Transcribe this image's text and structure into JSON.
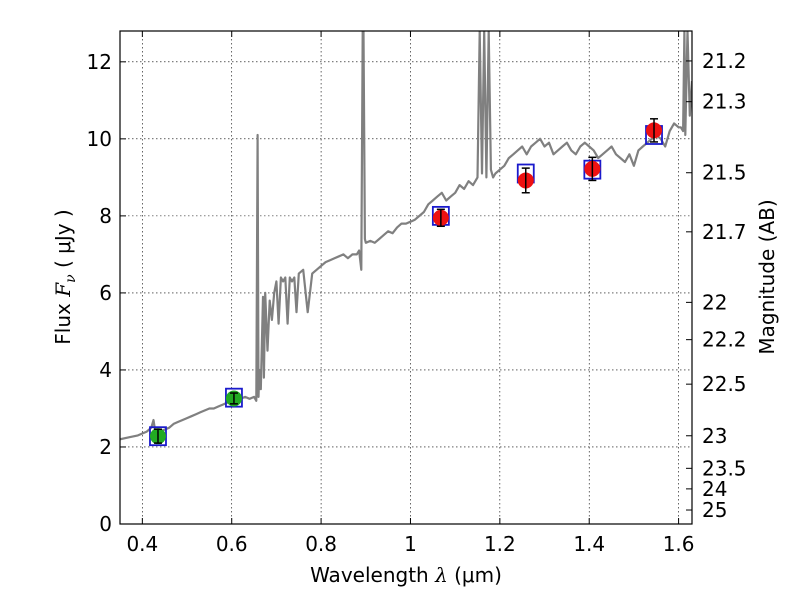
{
  "chart_data": {
    "type": "scatter",
    "title": "",
    "xlabel": {
      "pre": "Wavelength  ",
      "sym": "λ",
      "unit": " (μm)"
    },
    "ylabel": {
      "pre": "Flux  ",
      "sym": "F",
      "sub": "ν",
      "unit": "  ( μJy )"
    },
    "y2label": "Magnitude (AB)",
    "xlim": [
      0.35,
      1.63
    ],
    "ylim": [
      0,
      12.8
    ],
    "grid": true,
    "xticks": [
      {
        "v": 0.4,
        "label": "0.4"
      },
      {
        "v": 0.6,
        "label": "0.6"
      },
      {
        "v": 0.8,
        "label": "0.8"
      },
      {
        "v": 1.0,
        "label": "1"
      },
      {
        "v": 1.2,
        "label": "1.2"
      },
      {
        "v": 1.4,
        "label": "1.4"
      },
      {
        "v": 1.6,
        "label": "1.6"
      }
    ],
    "yticks": [
      {
        "v": 0,
        "label": "0"
      },
      {
        "v": 2,
        "label": "2"
      },
      {
        "v": 4,
        "label": "4"
      },
      {
        "v": 6,
        "label": "6"
      },
      {
        "v": 8,
        "label": "8"
      },
      {
        "v": 10,
        "label": "10"
      },
      {
        "v": 12,
        "label": "12"
      }
    ],
    "mag_ticks": [
      {
        "mag": 21.2,
        "label": "21.2"
      },
      {
        "mag": 21.3,
        "label": "21.3"
      },
      {
        "mag": 21.5,
        "label": "21.5"
      },
      {
        "mag": 21.7,
        "label": "21.7"
      },
      {
        "mag": 22,
        "label": "22"
      },
      {
        "mag": 22.2,
        "label": "22.2"
      },
      {
        "mag": 22.5,
        "label": "22.5"
      },
      {
        "mag": 23,
        "label": "23"
      },
      {
        "mag": 23.5,
        "label": "23.5"
      },
      {
        "mag": 24,
        "label": "24"
      },
      {
        "mag": 25,
        "label": "25"
      }
    ],
    "colors": {
      "sed": "#808080",
      "optical_points": "#22aa22",
      "nir_points": "#ee1111",
      "model_boxes": "#1a1acc",
      "errorbars": "#000000"
    },
    "series": [
      {
        "type": "line",
        "color": "#808080",
        "x": [
          0.35,
          0.37,
          0.39,
          0.4,
          0.41,
          0.42,
          0.425,
          0.43,
          0.435,
          0.44,
          0.45,
          0.46,
          0.47,
          0.48,
          0.49,
          0.5,
          0.51,
          0.52,
          0.53,
          0.54,
          0.55,
          0.56,
          0.57,
          0.58,
          0.59,
          0.6,
          0.61,
          0.62,
          0.63,
          0.64,
          0.65,
          0.655,
          0.658,
          0.66,
          0.662,
          0.665,
          0.67,
          0.672,
          0.675,
          0.68,
          0.685,
          0.69,
          0.695,
          0.7,
          0.705,
          0.71,
          0.715,
          0.72,
          0.725,
          0.73,
          0.735,
          0.74,
          0.745,
          0.75,
          0.76,
          0.77,
          0.78,
          0.79,
          0.8,
          0.81,
          0.82,
          0.83,
          0.84,
          0.85,
          0.86,
          0.87,
          0.88,
          0.885,
          0.89,
          0.893,
          0.895,
          0.898,
          0.9,
          0.91,
          0.92,
          0.93,
          0.94,
          0.95,
          0.96,
          0.97,
          0.98,
          0.99,
          1.0,
          1.01,
          1.02,
          1.03,
          1.04,
          1.05,
          1.06,
          1.07,
          1.08,
          1.09,
          1.1,
          1.11,
          1.12,
          1.13,
          1.14,
          1.15,
          1.155,
          1.16,
          1.165,
          1.17,
          1.175,
          1.18,
          1.185,
          1.19,
          1.2,
          1.21,
          1.22,
          1.23,
          1.24,
          1.25,
          1.26,
          1.27,
          1.28,
          1.29,
          1.3,
          1.31,
          1.32,
          1.33,
          1.34,
          1.35,
          1.36,
          1.37,
          1.38,
          1.39,
          1.4,
          1.41,
          1.42,
          1.43,
          1.44,
          1.45,
          1.46,
          1.47,
          1.48,
          1.49,
          1.5,
          1.51,
          1.52,
          1.53,
          1.54,
          1.55,
          1.56,
          1.57,
          1.58,
          1.59,
          1.6,
          1.605,
          1.61,
          1.613,
          1.615,
          1.62,
          1.625,
          1.63
        ],
        "y": [
          2.2,
          2.25,
          2.3,
          2.35,
          2.4,
          2.5,
          2.7,
          2.3,
          2.35,
          2.4,
          2.45,
          2.5,
          2.6,
          2.65,
          2.7,
          2.75,
          2.8,
          2.85,
          2.9,
          2.95,
          3.0,
          3.0,
          3.05,
          3.1,
          3.15,
          3.2,
          3.25,
          3.25,
          3.3,
          3.25,
          3.3,
          3.2,
          10.1,
          3.3,
          4.0,
          3.5,
          5.9,
          3.8,
          6.0,
          4.5,
          5.8,
          5.3,
          6.0,
          6.3,
          5.2,
          6.4,
          6.3,
          6.4,
          5.2,
          6.4,
          6.3,
          6.4,
          5.5,
          6.5,
          6.6,
          5.5,
          6.5,
          6.6,
          6.7,
          6.8,
          6.85,
          6.9,
          6.95,
          7.0,
          6.9,
          7.0,
          7.0,
          7.1,
          6.6,
          12.8,
          12.8,
          7.4,
          7.3,
          7.35,
          7.3,
          7.4,
          7.5,
          7.6,
          7.55,
          7.7,
          7.8,
          7.8,
          7.85,
          7.9,
          8.0,
          8.1,
          8.3,
          8.4,
          8.5,
          8.6,
          8.4,
          8.5,
          8.6,
          8.8,
          8.7,
          8.9,
          8.8,
          9.0,
          12.8,
          9.1,
          12.8,
          9.0,
          12.8,
          9.2,
          9.0,
          9.1,
          9.2,
          9.3,
          9.5,
          9.6,
          9.7,
          9.8,
          9.6,
          9.8,
          9.9,
          10.0,
          9.8,
          9.9,
          9.6,
          9.7,
          9.8,
          9.9,
          9.7,
          9.6,
          9.8,
          9.9,
          9.8,
          9.7,
          9.5,
          9.6,
          9.7,
          9.8,
          9.6,
          9.5,
          9.4,
          9.6,
          9.3,
          9.7,
          9.8,
          9.9,
          10.0,
          10.1,
          10.0,
          9.8,
          10.2,
          10.4,
          10.3,
          10.3,
          10.2,
          12.8,
          10.1,
          12.8,
          10.6,
          11.5
        ]
      }
    ],
    "optical_points": [
      {
        "x": 0.435,
        "y": 2.28,
        "err": 0.18,
        "model": 2.28
      },
      {
        "x": 0.605,
        "y": 3.26,
        "err": 0.14,
        "model": 3.28
      }
    ],
    "nir_points": [
      {
        "x": 1.068,
        "y": 7.95,
        "err": 0.22,
        "model": 8.0
      },
      {
        "x": 1.258,
        "y": 8.92,
        "err": 0.32,
        "model": 9.1
      },
      {
        "x": 1.407,
        "y": 9.22,
        "err": 0.3,
        "model": 9.2
      },
      {
        "x": 1.545,
        "y": 10.22,
        "err": 0.3,
        "model": 10.1
      }
    ]
  }
}
